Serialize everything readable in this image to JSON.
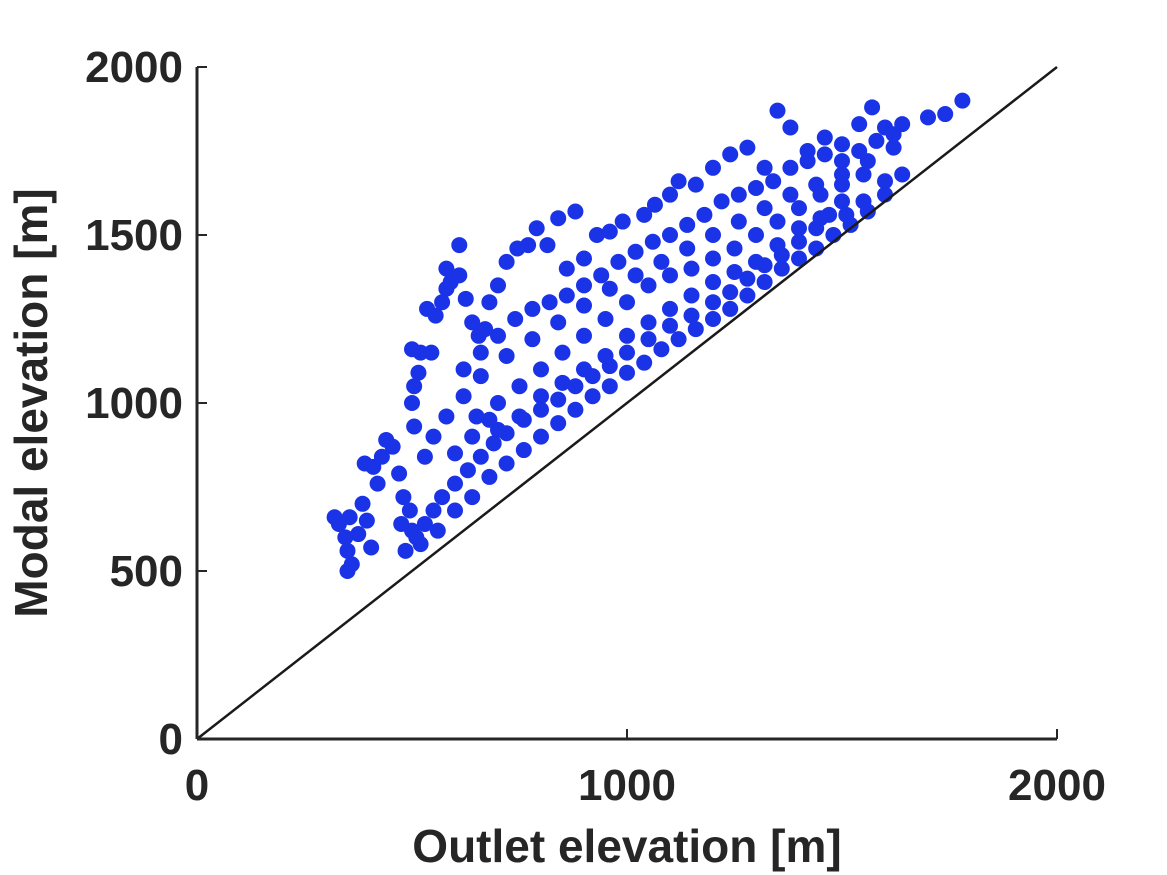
{
  "chart_data": {
    "type": "scatter",
    "xlabel": "Outlet elevation [m]",
    "ylabel": "Modal elevation [m]",
    "xlim": [
      0,
      2000
    ],
    "ylim": [
      0,
      2000
    ],
    "xticks": [
      0,
      1000,
      2000
    ],
    "yticks": [
      0,
      500,
      1000,
      1500,
      2000
    ],
    "xtick_labels": [
      "0",
      "1000",
      "2000"
    ],
    "ytick_labels": [
      "0",
      "500",
      "1000",
      "1500",
      "2000"
    ],
    "grid": false,
    "colors": {
      "points": "#1a33e6",
      "reference_line": "#1a1a1a",
      "axes": "#262626"
    },
    "reference_line": {
      "x": [
        0,
        2000
      ],
      "y": [
        0,
        2000
      ]
    },
    "series": [
      {
        "points": [
          [
            320,
            660
          ],
          [
            330,
            640
          ],
          [
            345,
            600
          ],
          [
            350,
            560
          ],
          [
            350,
            500
          ],
          [
            360,
            520
          ],
          [
            355,
            660
          ],
          [
            375,
            610
          ],
          [
            385,
            700
          ],
          [
            395,
            650
          ],
          [
            405,
            570
          ],
          [
            390,
            820
          ],
          [
            410,
            810
          ],
          [
            430,
            840
          ],
          [
            440,
            890
          ],
          [
            455,
            870
          ],
          [
            420,
            760
          ],
          [
            470,
            790
          ],
          [
            480,
            720
          ],
          [
            495,
            680
          ],
          [
            485,
            560
          ],
          [
            475,
            640
          ],
          [
            500,
            620
          ],
          [
            510,
            600
          ],
          [
            505,
            930
          ],
          [
            500,
            1000
          ],
          [
            505,
            1050
          ],
          [
            515,
            1090
          ],
          [
            500,
            1160
          ],
          [
            520,
            1150
          ],
          [
            545,
            1150
          ],
          [
            535,
            1280
          ],
          [
            555,
            1260
          ],
          [
            570,
            1300
          ],
          [
            580,
            1340
          ],
          [
            580,
            1400
          ],
          [
            590,
            1360
          ],
          [
            610,
            1470
          ],
          [
            610,
            1380
          ],
          [
            625,
            1310
          ],
          [
            640,
            1240
          ],
          [
            655,
            1200
          ],
          [
            670,
            1220
          ],
          [
            680,
            1300
          ],
          [
            700,
            1350
          ],
          [
            720,
            1420
          ],
          [
            745,
            1460
          ],
          [
            770,
            1470
          ],
          [
            790,
            1520
          ],
          [
            815,
            1470
          ],
          [
            840,
            1550
          ],
          [
            880,
            1570
          ],
          [
            860,
            1400
          ],
          [
            900,
            1430
          ],
          [
            930,
            1500
          ],
          [
            960,
            1510
          ],
          [
            990,
            1540
          ],
          [
            1040,
            1560
          ],
          [
            1065,
            1590
          ],
          [
            1100,
            1620
          ],
          [
            1120,
            1660
          ],
          [
            1160,
            1650
          ],
          [
            1200,
            1700
          ],
          [
            1240,
            1740
          ],
          [
            1280,
            1760
          ],
          [
            1320,
            1700
          ],
          [
            1350,
            1870
          ],
          [
            1380,
            1820
          ],
          [
            1420,
            1750
          ],
          [
            1460,
            1790
          ],
          [
            1500,
            1770
          ],
          [
            1540,
            1830
          ],
          [
            1570,
            1880
          ],
          [
            1600,
            1820
          ],
          [
            1640,
            1830
          ],
          [
            1700,
            1850
          ],
          [
            1740,
            1860
          ],
          [
            1780,
            1900
          ],
          [
            1600,
            1660
          ],
          [
            1550,
            1600
          ],
          [
            1510,
            1560
          ],
          [
            1470,
            1560
          ],
          [
            1440,
            1520
          ],
          [
            1400,
            1480
          ],
          [
            1360,
            1440
          ],
          [
            1320,
            1410
          ],
          [
            1280,
            1370
          ],
          [
            1240,
            1330
          ],
          [
            1200,
            1300
          ],
          [
            1150,
            1260
          ],
          [
            1100,
            1230
          ],
          [
            1050,
            1190
          ],
          [
            1000,
            1150
          ],
          [
            960,
            1110
          ],
          [
            920,
            1080
          ],
          [
            880,
            1050
          ],
          [
            840,
            1010
          ],
          [
            800,
            980
          ],
          [
            760,
            950
          ],
          [
            720,
            910
          ],
          [
            690,
            880
          ],
          [
            660,
            840
          ],
          [
            630,
            800
          ],
          [
            600,
            760
          ],
          [
            570,
            720
          ],
          [
            550,
            680
          ],
          [
            530,
            640
          ],
          [
            520,
            580
          ],
          [
            560,
            620
          ],
          [
            600,
            680
          ],
          [
            640,
            720
          ],
          [
            680,
            780
          ],
          [
            720,
            820
          ],
          [
            760,
            860
          ],
          [
            800,
            900
          ],
          [
            840,
            940
          ],
          [
            880,
            980
          ],
          [
            920,
            1020
          ],
          [
            960,
            1050
          ],
          [
            1000,
            1090
          ],
          [
            1040,
            1120
          ],
          [
            1080,
            1160
          ],
          [
            1120,
            1190
          ],
          [
            1160,
            1220
          ],
          [
            1200,
            1250
          ],
          [
            1240,
            1280
          ],
          [
            1280,
            1320
          ],
          [
            1320,
            1360
          ],
          [
            1360,
            1400
          ],
          [
            1400,
            1430
          ],
          [
            1440,
            1460
          ],
          [
            1480,
            1500
          ],
          [
            1520,
            1530
          ],
          [
            1560,
            1570
          ],
          [
            1600,
            1620
          ],
          [
            1640,
            1680
          ],
          [
            1620,
            1760
          ],
          [
            1560,
            1720
          ],
          [
            1500,
            1680
          ],
          [
            1440,
            1650
          ],
          [
            1380,
            1620
          ],
          [
            1320,
            1580
          ],
          [
            1260,
            1540
          ],
          [
            1200,
            1500
          ],
          [
            1140,
            1460
          ],
          [
            1080,
            1420
          ],
          [
            1020,
            1380
          ],
          [
            960,
            1340
          ],
          [
            900,
            1290
          ],
          [
            840,
            1240
          ],
          [
            780,
            1190
          ],
          [
            720,
            1140
          ],
          [
            660,
            1080
          ],
          [
            620,
            1020
          ],
          [
            580,
            960
          ],
          [
            550,
            900
          ],
          [
            530,
            840
          ],
          [
            700,
            1000
          ],
          [
            750,
            1050
          ],
          [
            800,
            1100
          ],
          [
            850,
            1150
          ],
          [
            900,
            1200
          ],
          [
            950,
            1250
          ],
          [
            1000,
            1300
          ],
          [
            1050,
            1350
          ],
          [
            1100,
            1380
          ],
          [
            1150,
            1400
          ],
          [
            1200,
            1430
          ],
          [
            1250,
            1460
          ],
          [
            1300,
            1500
          ],
          [
            1350,
            1540
          ],
          [
            1400,
            1580
          ],
          [
            1450,
            1620
          ],
          [
            1500,
            1650
          ],
          [
            1550,
            1680
          ],
          [
            650,
            960
          ],
          [
            700,
            920
          ],
          [
            750,
            960
          ],
          [
            800,
            1020
          ],
          [
            850,
            1060
          ],
          [
            900,
            1100
          ],
          [
            950,
            1140
          ],
          [
            1000,
            1200
          ],
          [
            1050,
            1240
          ],
          [
            1100,
            1280
          ],
          [
            1150,
            1320
          ],
          [
            1200,
            1360
          ],
          [
            1250,
            1390
          ],
          [
            1300,
            1420
          ],
          [
            1350,
            1470
          ],
          [
            1400,
            1520
          ],
          [
            1450,
            1550
          ],
          [
            1500,
            1600
          ],
          [
            600,
            850
          ],
          [
            640,
            900
          ],
          [
            680,
            950
          ],
          [
            620,
            1100
          ],
          [
            660,
            1150
          ],
          [
            700,
            1200
          ],
          [
            740,
            1250
          ],
          [
            780,
            1280
          ],
          [
            820,
            1300
          ],
          [
            860,
            1320
          ],
          [
            900,
            1350
          ],
          [
            940,
            1380
          ],
          [
            980,
            1420
          ],
          [
            1020,
            1450
          ],
          [
            1060,
            1480
          ],
          [
            1100,
            1500
          ],
          [
            1140,
            1530
          ],
          [
            1180,
            1560
          ],
          [
            1220,
            1600
          ],
          [
            1260,
            1620
          ],
          [
            1300,
            1640
          ],
          [
            1340,
            1660
          ],
          [
            1380,
            1700
          ],
          [
            1420,
            1720
          ],
          [
            1460,
            1740
          ],
          [
            1500,
            1720
          ],
          [
            1540,
            1750
          ],
          [
            1580,
            1780
          ],
          [
            1620,
            1800
          ]
        ]
      }
    ]
  }
}
